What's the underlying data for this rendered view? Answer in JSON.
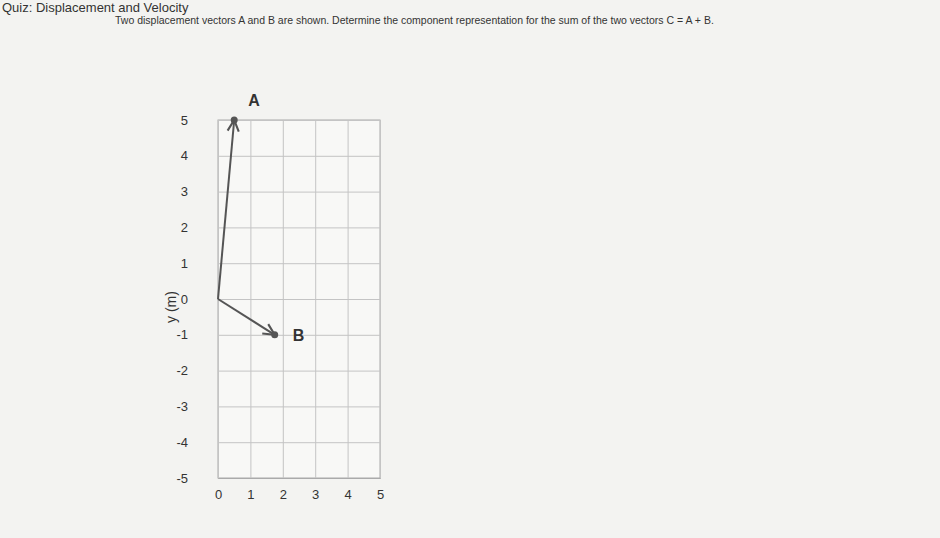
{
  "header": {
    "title": "Quiz: Displacement and Velocity",
    "question": "Two displacement vectors A and B are shown. Determine the component representation for the sum of the two vectors C = A + B."
  },
  "chart_data": {
    "type": "vector",
    "y_label": "y (m)",
    "xlim": [
      0,
      5
    ],
    "ylim": [
      -5,
      5
    ],
    "xticks": [
      0,
      1,
      2,
      3,
      4,
      5
    ],
    "yticks": [
      -5,
      -4,
      -3,
      -2,
      -1,
      0,
      1,
      2,
      3,
      4,
      5
    ],
    "grid": true,
    "series": [
      {
        "name": "A",
        "color": "#555555",
        "marker": "arrow",
        "line_style": "solid",
        "x": [
          0,
          0.5
        ],
        "values": [
          0,
          5
        ]
      },
      {
        "name": "B",
        "color": "#555555",
        "marker": "arrow",
        "line_style": "solid",
        "x": [
          0,
          1.75
        ],
        "values": [
          0,
          -1
        ]
      }
    ]
  }
}
